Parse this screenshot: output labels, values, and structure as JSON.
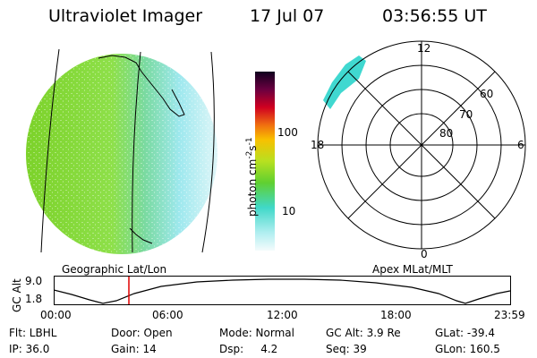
{
  "header": {
    "instrument": "Ultraviolet Imager",
    "date": "17 Jul 07",
    "time": "03:56:55 UT"
  },
  "colorbar": {
    "unit_label": "photon cm",
    "unit_sup1": "-2",
    "unit_mid": "s",
    "unit_sup2": "-1",
    "tick_100": "100",
    "tick_10": "10"
  },
  "polar_plot": {
    "label_top": "12",
    "label_bottom": "0",
    "label_left": "18",
    "label_right": "6",
    "lat_60": "60",
    "lat_70": "70",
    "lat_80": "80",
    "caption": "Apex MLat/MLT"
  },
  "globe": {
    "caption": "Geographic Lat/Lon"
  },
  "altitude_panel": {
    "axis_label": "GC Alt",
    "y_max": "9.0",
    "y_min": "1.8",
    "x_ticks": [
      "00:00",
      "06:00",
      "12:00",
      "18:00",
      "23:59"
    ],
    "marker_time": "03:56:55"
  },
  "status": {
    "flt": "Flt: LBHL",
    "ip": "IP: 36.0",
    "door": "Door: Open",
    "gain": "Gain: 14",
    "mode": "Mode: Normal",
    "dsp": "Dsp:     4.2",
    "gc_alt": "GC Alt: 3.9 Re",
    "seq": "Seq: 39",
    "glat": "GLat: -39.4",
    "glon": "GLon: 160.5"
  },
  "colors": {
    "marker": "#e00000",
    "aurora": "#40d8d0"
  }
}
